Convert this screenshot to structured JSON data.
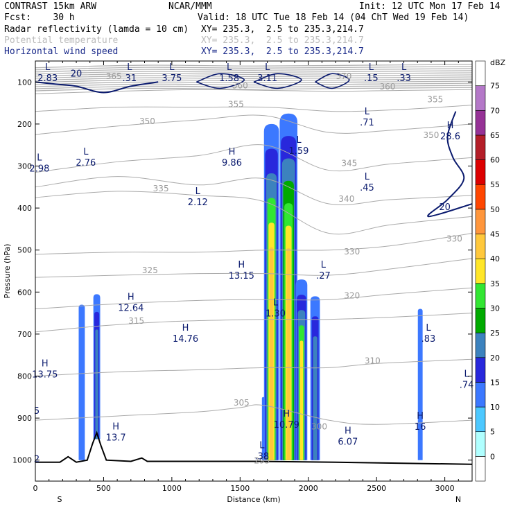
{
  "header": {
    "model": "CONTRAST 15km ARW",
    "center": "NCAR/MMM",
    "init": "Init: 12 UTC Mon 17 Feb 14",
    "fcst": "Fcst:    30 h",
    "valid": "Valid: 18 UTC Tue 18 Feb 14 (04 ChT Wed 19 Feb 14)",
    "field1": "Radar reflectivity (lamda = 10 cm)",
    "field1_xy": "XY= 235.3,  2.5 to 235.3,214.7",
    "field2": "Potential temperature",
    "field2_xy": "XY= 235.3,  2.5 to 235.3,214.7",
    "field3": "Horizontal wind speed",
    "field3_xy": "XY= 235.3,  2.5 to 235.3,214.7"
  },
  "chart_data": {
    "type": "heatmap",
    "xlabel": "Distance (km)",
    "ylabel": "Pressure (hPa)",
    "xlim": [
      0,
      3200
    ],
    "ylim": [
      1050,
      50
    ],
    "x_ticks": [
      "0",
      "500",
      "1000",
      "1500",
      "2000",
      "2500",
      "3000"
    ],
    "y_ticks": [
      "100",
      "200",
      "300",
      "400",
      "500",
      "600",
      "700",
      "800",
      "900",
      "1000"
    ],
    "x_end_labels": {
      "left": "S",
      "right": "N"
    },
    "colorbar": {
      "unit": "dBZ",
      "levels": [
        "0",
        "5",
        "10",
        "15",
        "20",
        "25",
        "30",
        "35",
        "40",
        "45",
        "50",
        "55",
        "60",
        "65",
        "70",
        "75"
      ],
      "colors": [
        "#ffffff",
        "#b0ffff",
        "#4cc8ff",
        "#3c78ff",
        "#2828dc",
        "#3c82be",
        "#00aa00",
        "#32e632",
        "#ffe628",
        "#ffc83c",
        "#ff963c",
        "#ff4600",
        "#dc0000",
        "#b41e28",
        "#963296",
        "#b478c8",
        "#ffffff"
      ]
    },
    "reflectivity_cells": [
      {
        "x": 340,
        "p_top": 630,
        "p_bot": 1000,
        "w": 45,
        "levels": [
          10
        ]
      },
      {
        "x": 450,
        "p_top": 605,
        "p_bot": 950,
        "w": 50,
        "levels": [
          10,
          15,
          20
        ]
      },
      {
        "x": 1670,
        "p_top": 850,
        "p_bot": 1000,
        "w": 20,
        "levels": [
          10
        ]
      },
      {
        "x": 1730,
        "p_top": 200,
        "p_bot": 1000,
        "w": 110,
        "levels": [
          10,
          15,
          20,
          30,
          35,
          40
        ]
      },
      {
        "x": 1855,
        "p_top": 175,
        "p_bot": 1000,
        "w": 130,
        "levels": [
          10,
          15,
          20,
          25,
          30,
          35,
          40
        ]
      },
      {
        "x": 1950,
        "p_top": 570,
        "p_bot": 1000,
        "w": 85,
        "levels": [
          10,
          15,
          20,
          30,
          35
        ]
      },
      {
        "x": 2050,
        "p_top": 610,
        "p_bot": 1000,
        "w": 70,
        "levels": [
          10,
          15,
          20
        ]
      },
      {
        "x": 2820,
        "p_top": 640,
        "p_bot": 1000,
        "w": 35,
        "levels": [
          10
        ]
      }
    ],
    "theta_contours": [
      {
        "value": "305",
        "label_x": 1510,
        "label_p": 870,
        "points": [
          [
            0,
            905
          ],
          [
            600,
            895
          ],
          [
            1200,
            885
          ],
          [
            1500,
            875
          ],
          [
            1680,
            870
          ],
          [
            2150,
            905
          ],
          [
            2500,
            915
          ],
          [
            3200,
            905
          ]
        ]
      },
      {
        "value": "310",
        "label_x": 2470,
        "label_p": 770,
        "points": [
          [
            0,
            800
          ],
          [
            600,
            790
          ],
          [
            1200,
            785
          ],
          [
            1680,
            780
          ],
          [
            2150,
            780
          ],
          [
            2500,
            770
          ],
          [
            3200,
            760
          ]
        ]
      },
      {
        "value": "315",
        "label_x": 740,
        "label_p": 675,
        "points": [
          [
            0,
            695
          ],
          [
            500,
            680
          ],
          [
            1000,
            670
          ],
          [
            1680,
            665
          ],
          [
            2150,
            665
          ],
          [
            2600,
            660
          ],
          [
            3200,
            650
          ]
        ]
      },
      {
        "value": "320",
        "label_x": 2320,
        "label_p": 615,
        "points": [
          [
            0,
            640
          ],
          [
            600,
            628
          ],
          [
            1200,
            620
          ],
          [
            1680,
            618
          ],
          [
            2150,
            618
          ],
          [
            2600,
            605
          ],
          [
            3200,
            590
          ]
        ]
      },
      {
        "value": "325",
        "label_x": 840,
        "label_p": 555,
        "points": [
          [
            0,
            565
          ],
          [
            600,
            560
          ],
          [
            1200,
            556
          ],
          [
            1680,
            556
          ],
          [
            2150,
            560
          ],
          [
            2600,
            545
          ],
          [
            3200,
            520
          ]
        ]
      },
      {
        "value": "330",
        "label_x": 2320,
        "label_p": 510,
        "points": [
          [
            0,
            510
          ],
          [
            600,
            505
          ],
          [
            1200,
            505
          ],
          [
            1680,
            500
          ],
          [
            2150,
            500
          ],
          [
            2600,
            490
          ],
          [
            3200,
            460
          ]
        ]
      },
      {
        "value": "335",
        "label_x": 920,
        "label_p": 360,
        "points": [
          [
            0,
            375
          ],
          [
            600,
            360
          ],
          [
            1200,
            370
          ],
          [
            1680,
            385
          ],
          [
            2150,
            460
          ],
          [
            2600,
            440
          ],
          [
            3200,
            420
          ]
        ]
      },
      {
        "value": "340",
        "label_x": 2280,
        "label_p": 385,
        "points": [
          [
            0,
            350
          ],
          [
            600,
            325
          ],
          [
            1200,
            345
          ],
          [
            1680,
            330
          ],
          [
            2150,
            390
          ],
          [
            2600,
            380
          ],
          [
            3200,
            370
          ]
        ]
      },
      {
        "value": "345",
        "label_x": 2300,
        "label_p": 300,
        "points": [
          [
            0,
            315
          ],
          [
            600,
            290
          ],
          [
            1200,
            275
          ],
          [
            1680,
            250
          ],
          [
            2150,
            310
          ],
          [
            2600,
            295
          ],
          [
            3200,
            280
          ]
        ]
      },
      {
        "value": "350",
        "label_x": 820,
        "label_p": 200,
        "points": [
          [
            0,
            225
          ],
          [
            600,
            205
          ],
          [
            1200,
            190
          ],
          [
            1680,
            180
          ],
          [
            2150,
            220
          ],
          [
            2600,
            215
          ],
          [
            3200,
            200
          ]
        ]
      },
      {
        "value": "355",
        "label_x": 1470,
        "label_p": 160,
        "points": [
          [
            0,
            170
          ],
          [
            600,
            160
          ],
          [
            1200,
            160
          ],
          [
            1700,
            160
          ],
          [
            2200,
            170
          ],
          [
            2700,
            165
          ],
          [
            3200,
            155
          ]
        ]
      },
      {
        "value": "360",
        "label_x": 2580,
        "label_p": 118,
        "points": [
          [
            0,
            128
          ],
          [
            600,
            122
          ],
          [
            1200,
            118
          ],
          [
            1700,
            120
          ],
          [
            2200,
            122
          ],
          [
            2700,
            120
          ],
          [
            3200,
            118
          ]
        ]
      }
    ],
    "theta_extra_labels": [
      {
        "value": "360",
        "x": 1500,
        "p": 115
      },
      {
        "value": "365",
        "x": 575,
        "p": 93
      },
      {
        "value": "370",
        "x": 2260,
        "p": 93
      },
      {
        "value": "355",
        "x": 2930,
        "p": 148
      },
      {
        "value": "350",
        "x": 2900,
        "p": 233
      },
      {
        "value": "330",
        "x": 3070,
        "p": 480
      },
      {
        "value": "300",
        "x": 2080,
        "p": 927
      },
      {
        "value": "295",
        "x": 1660,
        "p": 1008
      }
    ],
    "wind_contours": [
      {
        "value": "20",
        "label_x": 300,
        "label_p": 87,
        "points": [
          [
            0,
            100
          ],
          [
            150,
            105
          ],
          [
            300,
            110
          ],
          [
            500,
            125
          ],
          [
            700,
            110
          ],
          [
            900,
            100
          ]
        ]
      },
      {
        "value": "20",
        "label_x": 3000,
        "label_p": 405,
        "points": [
          [
            3080,
            170
          ],
          [
            3020,
            230
          ],
          [
            3060,
            280
          ],
          [
            3140,
            330
          ],
          [
            3020,
            380
          ],
          [
            2880,
            420
          ],
          [
            3200,
            390
          ]
        ]
      }
    ],
    "wind_extrema": [
      {
        "type": "L",
        "value": "2.83",
        "x": 90,
        "p": 85
      },
      {
        "type": "L",
        "value": ".31",
        "x": 690,
        "p": 85
      },
      {
        "type": "L",
        "value": "3.75",
        "x": 1000,
        "p": 85
      },
      {
        "type": "L",
        "value": "1.58",
        "x": 1420,
        "p": 85
      },
      {
        "type": "L",
        "value": "3.11",
        "x": 1700,
        "p": 85
      },
      {
        "type": "L",
        "value": ".15",
        "x": 2460,
        "p": 85
      },
      {
        "type": "L",
        "value": ".33",
        "x": 2700,
        "p": 85
      },
      {
        "type": "L",
        "value": ".71",
        "x": 2430,
        "p": 190
      },
      {
        "type": "H",
        "value": "28.6",
        "x": 3040,
        "p": 223
      },
      {
        "type": "L",
        "value": "1.59",
        "x": 1930,
        "p": 258
      },
      {
        "type": "L",
        "value": "2.76",
        "x": 370,
        "p": 286
      },
      {
        "type": "L",
        "value": "2.98",
        "x": 30,
        "p": 300
      },
      {
        "type": "H",
        "value": "9.86",
        "x": 1440,
        "p": 286
      },
      {
        "type": "L",
        "value": ".45",
        "x": 2430,
        "p": 345
      },
      {
        "type": "L",
        "value": "2.12",
        "x": 1190,
        "p": 380
      },
      {
        "type": "H",
        "value": "13.15",
        "x": 1510,
        "p": 555
      },
      {
        "type": "L",
        "value": ".27",
        "x": 2110,
        "p": 555
      },
      {
        "type": "H",
        "value": "12.64",
        "x": 700,
        "p": 632
      },
      {
        "type": "L",
        "value": "1.30",
        "x": 1760,
        "p": 645
      },
      {
        "type": "H",
        "value": "14.76",
        "x": 1100,
        "p": 705
      },
      {
        "type": "L",
        "value": ".83",
        "x": 2880,
        "p": 705
      },
      {
        "type": "H",
        "value": "13.75",
        "x": 70,
        "p": 790
      },
      {
        "type": "L",
        "value": ".74",
        "x": 3160,
        "p": 815
      },
      {
        "type": "H",
        "value": "10.79",
        "x": 1840,
        "p": 910
      },
      {
        "type": "H",
        "value": "16",
        "x": 2820,
        "p": 915
      },
      {
        "type": "H",
        "value": "13.7",
        "x": 590,
        "p": 940
      },
      {
        "type": "H",
        "value": "6.07",
        "x": 2290,
        "p": 950
      },
      {
        "type": "L",
        "value": ".38",
        "x": 1660,
        "p": 985
      }
    ],
    "edge_values": [
      {
        "value": "5",
        "x": 10,
        "p": 890
      },
      {
        "value": "2",
        "x": 10,
        "p": 1005
      }
    ],
    "terrain": [
      [
        0,
        1005
      ],
      [
        180,
        1005
      ],
      [
        240,
        992
      ],
      [
        300,
        1005
      ],
      [
        380,
        1000
      ],
      [
        420,
        960
      ],
      [
        450,
        935
      ],
      [
        480,
        965
      ],
      [
        520,
        1000
      ],
      [
        700,
        1003
      ],
      [
        780,
        995
      ],
      [
        820,
        1003
      ],
      [
        1200,
        1003
      ],
      [
        1650,
        1003
      ],
      [
        2200,
        1005
      ],
      [
        3200,
        1010
      ]
    ]
  }
}
